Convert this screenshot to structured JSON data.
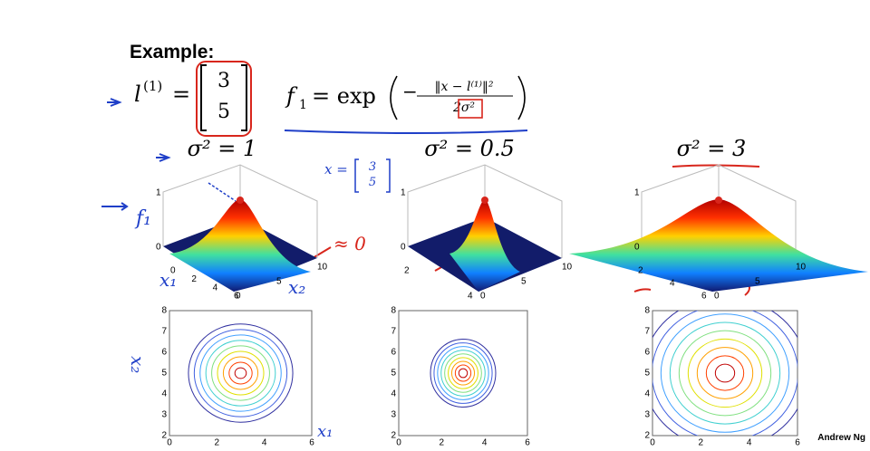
{
  "title": "Example:",
  "landmark": {
    "symbol": "l",
    "superscript": "(1)",
    "equals": "=",
    "vector": [
      "3",
      "5"
    ]
  },
  "formula": {
    "lhs": "f",
    "lhs_sub": "1",
    "eq": "= exp",
    "numerator": "‖x − l⁽¹⁾‖²",
    "denominator": "2σ²"
  },
  "panels": [
    {
      "label": "σ² = 1",
      "surface": {
        "z_ticks": [
          "0",
          "1"
        ],
        "x_ticks": [
          "0",
          "2",
          "4",
          "6"
        ],
        "y_ticks": [
          "0",
          "5",
          "10"
        ]
      },
      "contour": {
        "x_ticks": [
          "0",
          "2",
          "4",
          "6"
        ],
        "y_ticks": [
          "2",
          "3",
          "4",
          "5",
          "6",
          "7",
          "8"
        ]
      }
    },
    {
      "label": "σ² = 0.5",
      "surface": {
        "z_ticks": [
          "0",
          "1"
        ],
        "x_ticks": [
          "2",
          "4"
        ],
        "y_ticks": [
          "0",
          "5",
          "10"
        ]
      },
      "contour": {
        "x_ticks": [
          "0",
          "2",
          "4",
          "6"
        ],
        "y_ticks": [
          "2",
          "3",
          "4",
          "5",
          "6",
          "7",
          "8"
        ]
      }
    },
    {
      "label": "σ² = 3",
      "surface": {
        "z_ticks": [
          "0",
          "1"
        ],
        "x_ticks": [
          "2",
          "4",
          "6"
        ],
        "y_ticks": [
          "0",
          "5",
          "10"
        ]
      },
      "contour": {
        "x_ticks": [
          "0",
          "2",
          "4",
          "6"
        ],
        "y_ticks": [
          "2",
          "3",
          "4",
          "5",
          "6",
          "7",
          "8"
        ]
      }
    }
  ],
  "annotations": {
    "f1": "f₁",
    "x1": "x₁",
    "x2": "x₂",
    "approx": "≈ 0",
    "x_eq": "x =",
    "x_vec": [
      "3",
      "5"
    ],
    "x1_bottom": "x₁",
    "x2_side": "x₂"
  },
  "footer": "Andrew Ng"
}
